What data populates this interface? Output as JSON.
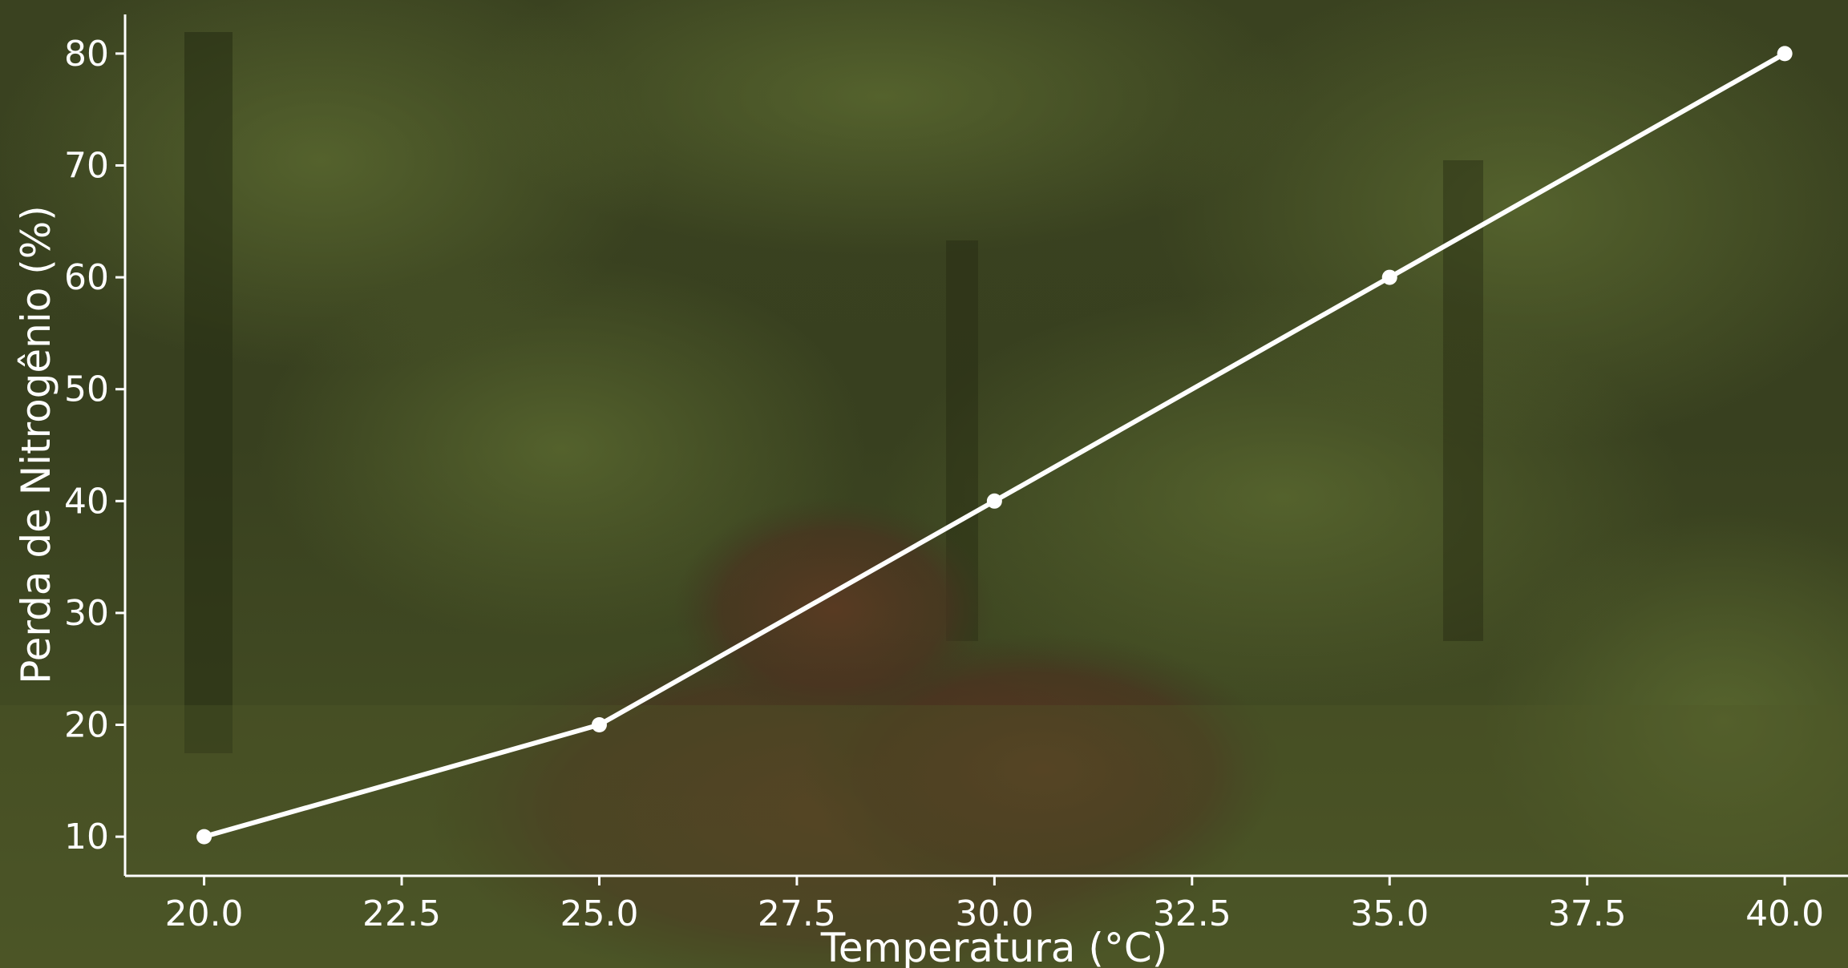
{
  "chart_data": {
    "type": "line",
    "x": [
      20,
      25,
      30,
      35,
      40
    ],
    "series": [
      {
        "values": [
          10,
          20,
          40,
          60,
          80
        ]
      }
    ],
    "xlabel": "Temperatura (°C)",
    "ylabel": "Perda de Nitrogênio (%)",
    "xlim": [
      19,
      40.8
    ],
    "ylim": [
      6.5,
      83.5
    ],
    "xticks": [
      "20.0",
      "22.5",
      "25.0",
      "27.5",
      "30.0",
      "32.5",
      "35.0",
      "37.5",
      "40.0"
    ],
    "yticks": [
      "10",
      "20",
      "30",
      "40",
      "50",
      "60",
      "70",
      "80"
    ],
    "grid": false,
    "line_color": "#ffffff",
    "marker": "circle",
    "background": "photo of oil palm plantation with harvested fruit bunches, dark green overlay"
  }
}
